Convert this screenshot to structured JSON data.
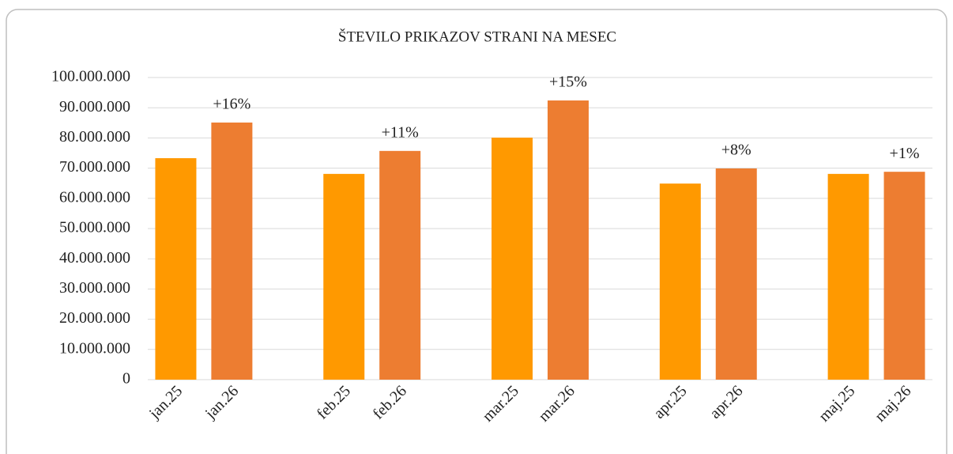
{
  "chart_data": {
    "type": "bar",
    "title": "ŠTEVILO PRIKAZOV STRANI NA MESEC",
    "categories": [
      "jan.25",
      "jan.26",
      null,
      "feb.25",
      "feb.26",
      null,
      "mar.25",
      "mar.26",
      null,
      "apr.25",
      "apr.26",
      null,
      "maj.25",
      "maj.26"
    ],
    "series": [
      {
        "color": "#ff9900",
        "values": [
          73300000,
          null,
          null,
          68100000,
          null,
          null,
          80100000,
          null,
          null,
          64900000,
          null,
          null,
          68100000,
          null
        ]
      },
      {
        "color": "#ed7d31",
        "values": [
          null,
          85100000,
          null,
          null,
          75700000,
          null,
          null,
          92400000,
          null,
          null,
          69900000,
          null,
          null,
          68800000
        ],
        "annotations": [
          null,
          "+16%",
          null,
          null,
          "+11%",
          null,
          null,
          "+15%",
          null,
          null,
          "+8%",
          null,
          null,
          "+1%"
        ]
      }
    ],
    "ylim": [
      0,
      100000000
    ],
    "yticks": [
      0,
      {
        "value": 10000000,
        "label": "10.000.000"
      },
      {
        "value": 20000000,
        "label": "20.000.000"
      },
      {
        "value": 30000000,
        "label": "30.000.000"
      },
      {
        "value": 40000000,
        "label": "40.000.000"
      },
      {
        "value": 50000000,
        "label": "50.000.000"
      },
      {
        "value": 60000000,
        "label": "60.000.000"
      },
      {
        "value": 70000000,
        "label": "70.000.000"
      },
      {
        "value": 80000000,
        "label": "80.000.000"
      },
      {
        "value": 90000000,
        "label": "90.000.000"
      },
      {
        "value": 100000000,
        "label": "100.000.000"
      }
    ],
    "grid": true
  }
}
